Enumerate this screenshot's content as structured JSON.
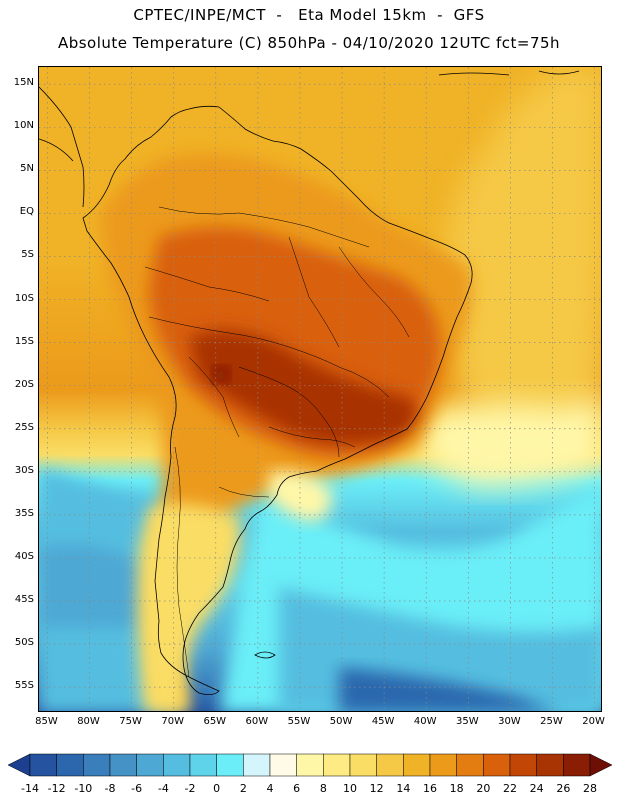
{
  "title": {
    "line1": "CPTEC/INPE/MCT  -   Eta Model 15km  -  GFS",
    "line2": "Absolute Temperature (C) 850hPa - 04/10/2020 12UTC fct=75h"
  },
  "map": {
    "latitude_labels": [
      "15N",
      "10N",
      "5N",
      "EQ",
      "5S",
      "10S",
      "15S",
      "20S",
      "25S",
      "30S",
      "35S",
      "40S",
      "45S",
      "50S",
      "55S"
    ],
    "longitude_labels": [
      "85W",
      "80W",
      "75W",
      "70W",
      "65W",
      "60W",
      "55W",
      "50W",
      "45W",
      "40W",
      "35W",
      "30W",
      "25W",
      "20W"
    ],
    "lon_range": [
      -86,
      -19
    ],
    "lat_range": [
      -58,
      17
    ],
    "gridlines": "dotted",
    "features": [
      "country-borders",
      "state-borders",
      "coastline"
    ]
  },
  "colorbar": {
    "levels": [
      "-14",
      "-12",
      "-10",
      "-8",
      "-6",
      "-4",
      "-2",
      "0",
      "2",
      "4",
      "6",
      "8",
      "10",
      "12",
      "14",
      "16",
      "18",
      "20",
      "22",
      "24",
      "26",
      "28"
    ],
    "colors": [
      "#1d3f8f",
      "#2553a0",
      "#2c67ae",
      "#3a7ebb",
      "#4592c6",
      "#4ea8d4",
      "#55bee0",
      "#5fd3ea",
      "#6beef7",
      "#d3f5fb",
      "#fffbe6",
      "#fff7a8",
      "#feeb83",
      "#fadd65",
      "#f5c845",
      "#f0b226",
      "#ec9a1a",
      "#e37d12",
      "#d9610b",
      "#c24706",
      "#a83303",
      "#8a1e05",
      "#6e0f06"
    ],
    "units": "C"
  }
}
